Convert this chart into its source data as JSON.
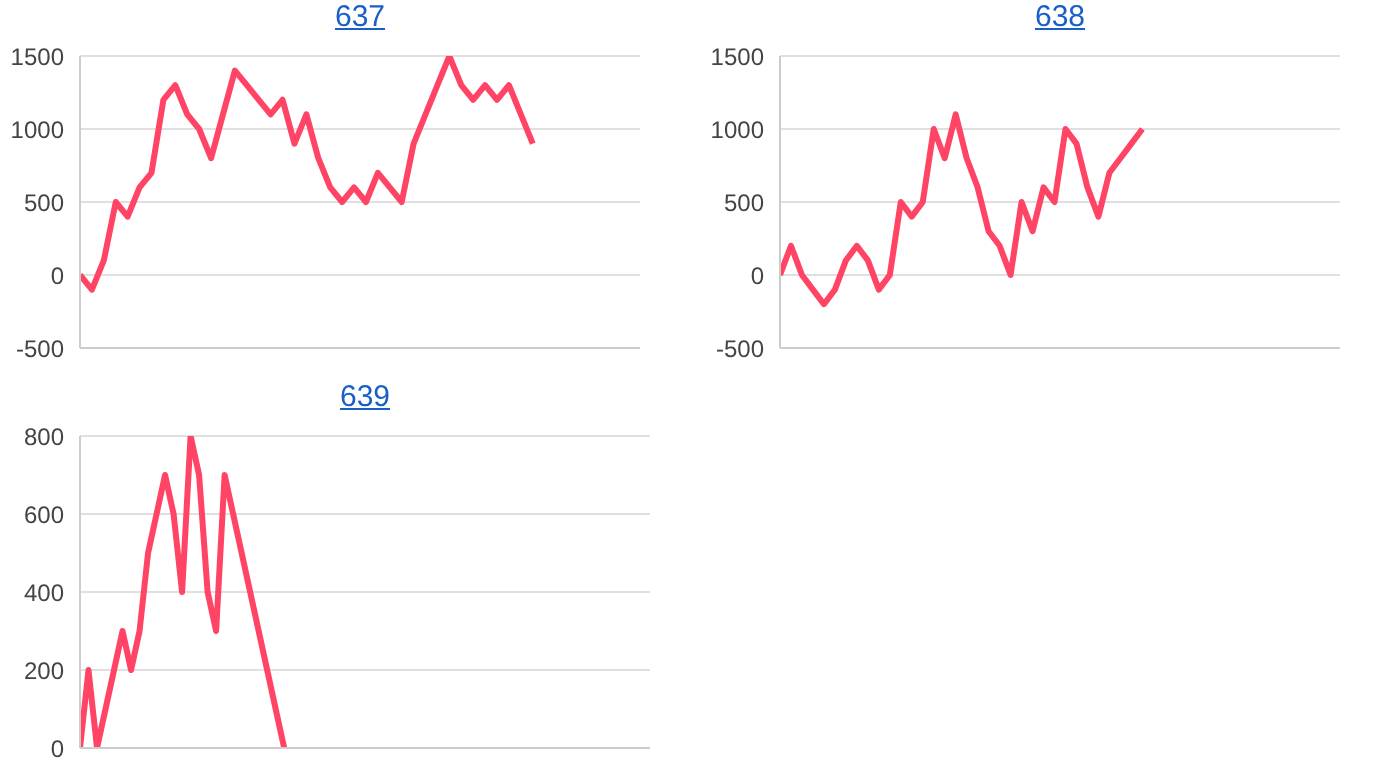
{
  "chart_data": [
    {
      "type": "line",
      "title": "637",
      "categories": [
        null,
        null,
        null,
        null,
        null,
        null,
        null,
        null,
        null,
        null,
        null,
        null,
        null,
        null,
        null,
        null,
        null,
        null,
        null,
        null,
        null,
        null,
        null,
        null,
        null,
        null,
        null,
        null,
        null,
        null,
        null,
        null,
        null,
        null,
        null,
        null,
        null,
        null,
        null,
        null,
        null,
        null,
        null,
        null,
        null,
        null,
        null,
        null
      ],
      "series": [
        {
          "color": "#ff4466",
          "values": [
            0,
            -100,
            100,
            500,
            400,
            600,
            700,
            1200,
            1300,
            1100,
            1000,
            800,
            1100,
            1400,
            1300,
            1200,
            1100,
            1200,
            900,
            1100,
            800,
            600,
            500,
            600,
            500,
            700,
            600,
            500,
            900,
            1100,
            1300,
            1500,
            1300,
            1200,
            1300,
            1200,
            1300,
            1100,
            900,
            null,
            null,
            null,
            null,
            null,
            null,
            null,
            null,
            null
          ]
        }
      ],
      "ylim": [
        -500,
        1500
      ],
      "yticks": [
        -500,
        0,
        500,
        1000,
        1500
      ],
      "grid": "y",
      "tick_labels": "y",
      "marker": "none"
    },
    {
      "type": "line",
      "title": "638",
      "categories": [
        null,
        null,
        null,
        null,
        null,
        null,
        null,
        null,
        null,
        null,
        null,
        null,
        null,
        null,
        null,
        null,
        null,
        null,
        null,
        null,
        null,
        null,
        null,
        null,
        null,
        null,
        null,
        null,
        null,
        null,
        null,
        null,
        null,
        null,
        null,
        null,
        null,
        null,
        null,
        null,
        null,
        null,
        null,
        null,
        null,
        null,
        null,
        null,
        null,
        null,
        null,
        null
      ],
      "series": [
        {
          "color": "#ff4466",
          "values": [
            0,
            200,
            0,
            -100,
            -200,
            -100,
            100,
            200,
            100,
            -100,
            0,
            500,
            400,
            500,
            1000,
            800,
            1100,
            800,
            600,
            300,
            200,
            0,
            500,
            300,
            600,
            500,
            1000,
            900,
            600,
            400,
            700,
            800,
            900,
            1000,
            null,
            null,
            null,
            null,
            null,
            null,
            null,
            null,
            null,
            null,
            null,
            null,
            null,
            null,
            null,
            null,
            null,
            null
          ]
        }
      ],
      "ylim": [
        -500,
        1500
      ],
      "yticks": [
        -500,
        0,
        500,
        1000,
        1500
      ],
      "grid": "y",
      "tick_labels": "y",
      "marker": "none"
    },
    {
      "type": "line",
      "title": "639",
      "categories": [
        null,
        null,
        null,
        null,
        null,
        null,
        null,
        null,
        null,
        null,
        null,
        null,
        null,
        null,
        null,
        null,
        null,
        null,
        null,
        null,
        null,
        null,
        null,
        null,
        null,
        null,
        null,
        null,
        null,
        null,
        null,
        null,
        null,
        null,
        null,
        null,
        null,
        null,
        null,
        null,
        null,
        null,
        null,
        null,
        null,
        null,
        null,
        null,
        null,
        null,
        null,
        null,
        null,
        null,
        null,
        null,
        null,
        null,
        null,
        null,
        null,
        null,
        null,
        null,
        null,
        null,
        null,
        null
      ],
      "series": [
        {
          "color": "#ff4466",
          "values": [
            0,
            200,
            0,
            100,
            200,
            300,
            200,
            300,
            500,
            600,
            700,
            600,
            400,
            800,
            700,
            400,
            300,
            700,
            600,
            500,
            400,
            300,
            200,
            100,
            0,
            null,
            null,
            null,
            null,
            null,
            null,
            null,
            null,
            null,
            null,
            null,
            null,
            null,
            null,
            null,
            null,
            null,
            null,
            null,
            null,
            null,
            null,
            null,
            null,
            null,
            null,
            null,
            null,
            null,
            null,
            null,
            null,
            null,
            null,
            null,
            null,
            null,
            null,
            null,
            null,
            null,
            null,
            null
          ]
        }
      ],
      "ylim": [
        0,
        800
      ],
      "yticks": [
        0,
        200,
        400,
        600,
        800
      ],
      "grid": "y",
      "tick_labels": "y",
      "marker": "none"
    }
  ]
}
